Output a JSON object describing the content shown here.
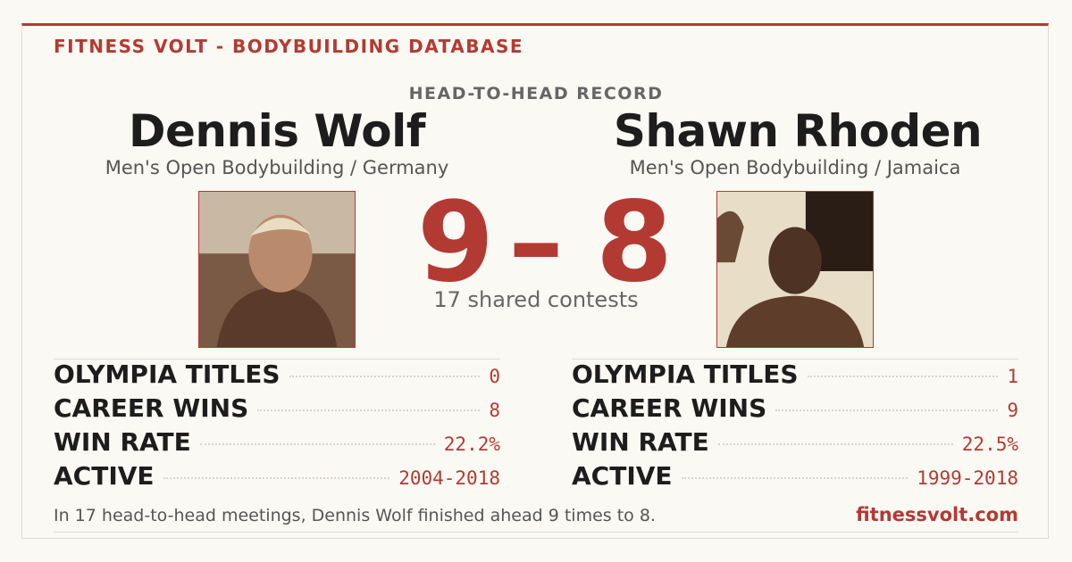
{
  "header": {
    "brand": "FITNESS VOLT - BODYBUILDING DATABASE",
    "section": "HEAD-TO-HEAD RECORD"
  },
  "athletes": [
    {
      "name": "Dennis Wolf",
      "subtitle": "Men's Open Bodybuilding / Germany"
    },
    {
      "name": "Shawn Rhoden",
      "subtitle": "Men's Open Bodybuilding / Jamaica"
    }
  ],
  "score": {
    "left": 9,
    "separator": "–",
    "right": 8,
    "caption": "17 shared contests"
  },
  "stats": [
    [
      [
        "OLYMPIA TITLES",
        "0"
      ],
      [
        "CAREER WINS",
        "8"
      ],
      [
        "WIN RATE",
        "22.2%"
      ],
      [
        "ACTIVE",
        "2004-2018"
      ]
    ],
    [
      [
        "OLYMPIA TITLES",
        "1"
      ],
      [
        "CAREER WINS",
        "9"
      ],
      [
        "WIN RATE",
        "22.5%"
      ],
      [
        "ACTIVE",
        "1999-2018"
      ]
    ]
  ],
  "footer": {
    "summary": "In 17 head-to-head meetings, Dennis Wolf finished ahead 9 times to 8.",
    "site": "fitnessvolt.com"
  }
}
